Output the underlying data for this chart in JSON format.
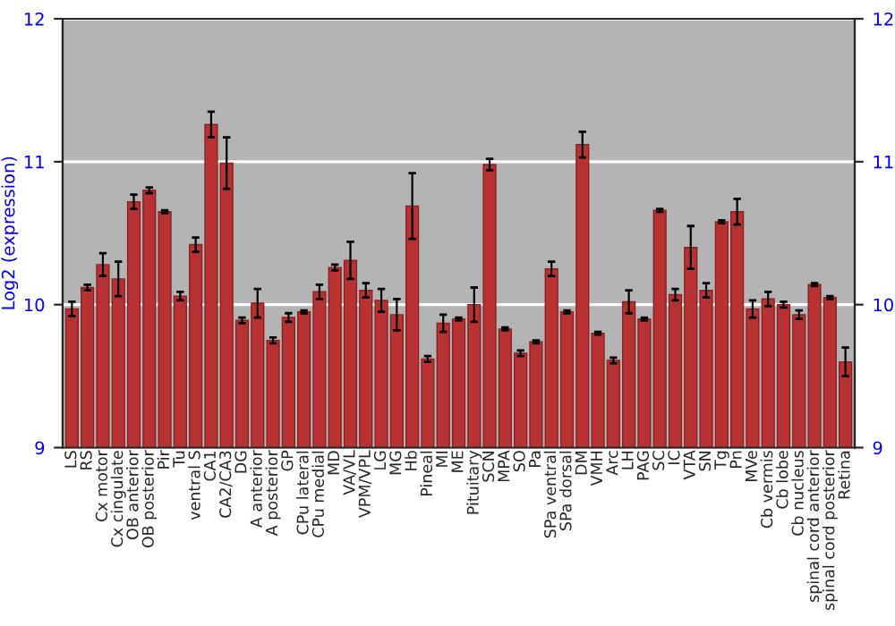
{
  "chart_data": {
    "type": "bar",
    "ylabel": "Log2 (expression)",
    "categories": [
      "LS",
      "RS",
      "Cx motor",
      "Cx cingulate",
      "OB anterior",
      "OB posterior",
      "Pir",
      "Tu",
      "ventral S",
      "CA1",
      "CA2/CA3",
      "DG",
      "A anterior",
      "A posterior",
      "GP",
      "CPu lateral",
      "CPu medial",
      "MD",
      "VA/VL",
      "VPM/VPL",
      "LG",
      "MG",
      "Hb",
      "Pineal",
      "MI",
      "ME",
      "Pituitary",
      "SCN",
      "MPA",
      "SO",
      "Pa",
      "SPa ventral",
      "SPa dorsal",
      "DM",
      "VMH",
      "Arc",
      "LH",
      "PAG",
      "SC",
      "IC",
      "VTA",
      "SN",
      "Tg",
      "Pn",
      "MVe",
      "Cb vermis",
      "Cb lobe",
      "Cb nucleus",
      "spinal cord anterior",
      "spinal cord posterior",
      "Retina"
    ],
    "values": [
      9.97,
      10.12,
      10.28,
      10.18,
      10.72,
      10.8,
      10.65,
      10.06,
      10.42,
      11.26,
      10.99,
      9.89,
      10.01,
      9.75,
      9.91,
      9.95,
      10.09,
      10.26,
      10.31,
      10.1,
      10.03,
      9.93,
      10.69,
      9.62,
      9.87,
      9.9,
      10.0,
      10.98,
      9.83,
      9.66,
      9.74,
      10.25,
      9.95,
      11.12,
      9.8,
      9.61,
      10.02,
      9.9,
      10.66,
      10.07,
      10.4,
      10.1,
      10.58,
      10.65,
      9.97,
      10.04,
      10.0,
      9.93,
      10.14,
      10.05,
      9.6
    ],
    "errors": [
      0.05,
      0.02,
      0.08,
      0.12,
      0.05,
      0.02,
      0.01,
      0.03,
      0.05,
      0.09,
      0.18,
      0.02,
      0.1,
      0.02,
      0.03,
      0.01,
      0.05,
      0.02,
      0.13,
      0.05,
      0.08,
      0.11,
      0.23,
      0.02,
      0.06,
      0.01,
      0.12,
      0.04,
      0.01,
      0.02,
      0.01,
      0.05,
      0.01,
      0.09,
      0.01,
      0.02,
      0.08,
      0.01,
      0.01,
      0.04,
      0.15,
      0.05,
      0.01,
      0.09,
      0.06,
      0.05,
      0.02,
      0.03,
      0.01,
      0.01,
      0.1
    ],
    "color": "#b83232",
    "ylim": [
      9,
      12
    ],
    "yticks": [
      9,
      10,
      11,
      12
    ],
    "y2lim": [
      9,
      12
    ],
    "y2ticks": [
      9,
      10,
      11,
      12
    ],
    "grid": "y",
    "legend": false
  }
}
